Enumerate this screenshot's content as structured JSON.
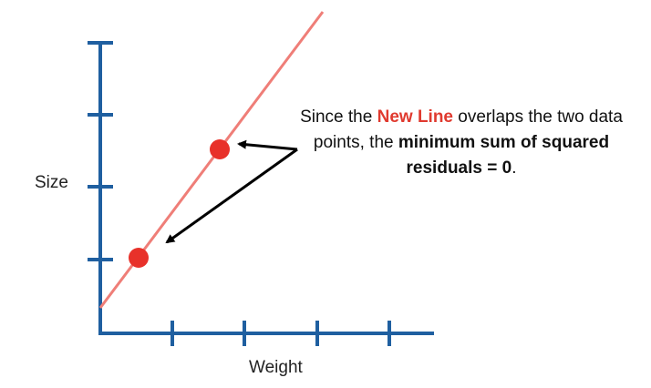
{
  "axis_labels": {
    "y": "Size",
    "x": "Weight"
  },
  "annotation": {
    "part1": "Since the ",
    "highlight": "New Line",
    "part2": " overlaps the two data points, the ",
    "bold": "minimum sum of squared residuals = 0",
    "part3": "."
  },
  "colors": {
    "axis": "#1f5fa0",
    "line": "#ef7e78",
    "point": "#e8312a",
    "highlight": "#e03a2f",
    "arrow": "#000000"
  },
  "points": [
    {
      "name": "data-point-1"
    },
    {
      "name": "data-point-2"
    }
  ]
}
